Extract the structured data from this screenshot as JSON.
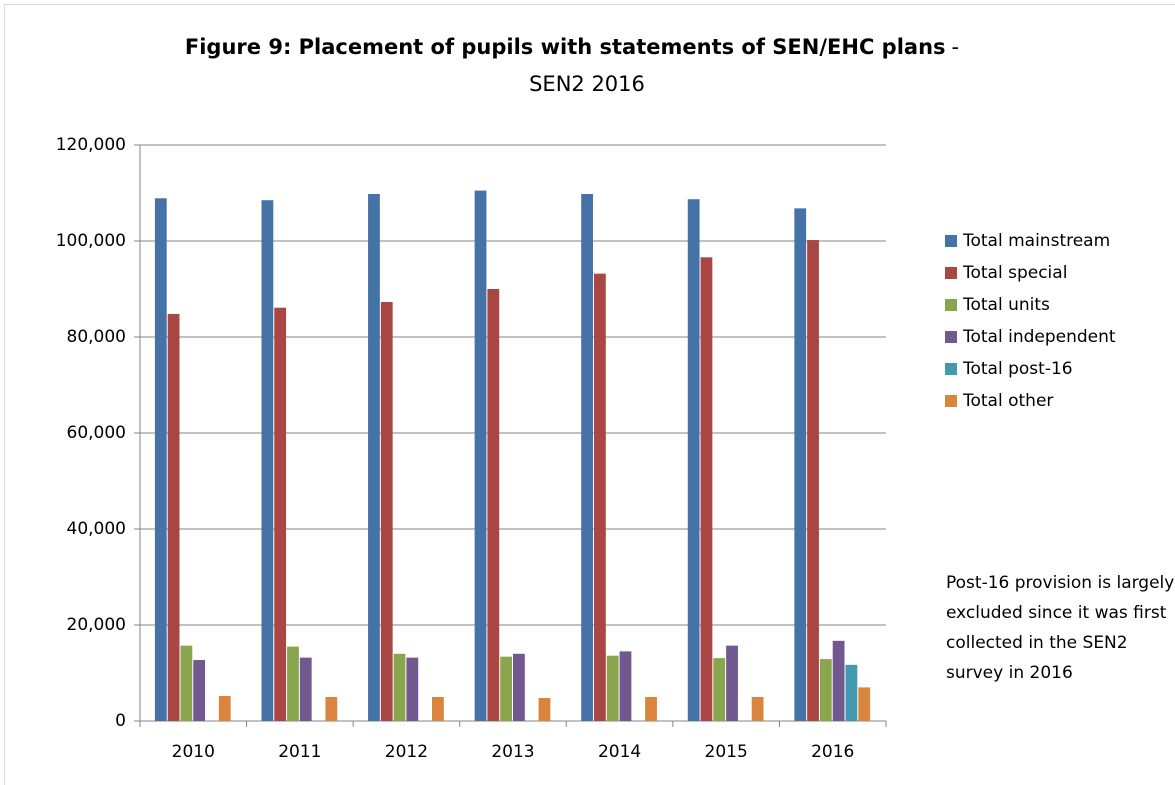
{
  "chart_data": {
    "type": "bar",
    "title": "Figure 9: Placement of pupils with statements of SEN/EHC plans",
    "title_separator": "-",
    "subtitle": "SEN2 2016",
    "categories": [
      "2010",
      "2011",
      "2012",
      "2013",
      "2014",
      "2015",
      "2016"
    ],
    "series": [
      {
        "name": "Total mainstream",
        "color": "#4572A7",
        "values": [
          108900,
          108500,
          109800,
          110500,
          109800,
          108700,
          106800
        ]
      },
      {
        "name": "Total special",
        "color": "#AA4643",
        "values": [
          84800,
          86100,
          87300,
          90000,
          93200,
          96600,
          100200
        ]
      },
      {
        "name": "Total units",
        "color": "#89A54E",
        "values": [
          15700,
          15500,
          14000,
          13400,
          13600,
          13100,
          12900
        ]
      },
      {
        "name": "Total independent",
        "color": "#71588F",
        "values": [
          12700,
          13200,
          13200,
          14000,
          14500,
          15700,
          16700
        ]
      },
      {
        "name": "Total post-16",
        "color": "#4198AF",
        "values": [
          null,
          null,
          null,
          null,
          null,
          null,
          11700
        ]
      },
      {
        "name": "Total other",
        "color": "#DB843D",
        "values": [
          5200,
          5000,
          5000,
          4800,
          5000,
          5000,
          7000
        ]
      }
    ],
    "ylim": [
      0,
      120000
    ],
    "yticks": [
      0,
      {
        "value": 20000,
        "label": "20,000"
      },
      {
        "value": 40000,
        "label": "40,000"
      },
      {
        "value": 60000,
        "label": "60,000"
      },
      {
        "value": 80000,
        "label": "80,000"
      },
      {
        "value": 100000,
        "label": "100,000"
      },
      {
        "value": 120000,
        "label": "120,000"
      }
    ],
    "grid": true,
    "legend": "right",
    "annotation": "Post-16 provision is largely excluded since it was first collected in the SEN2 survey in 2016"
  }
}
